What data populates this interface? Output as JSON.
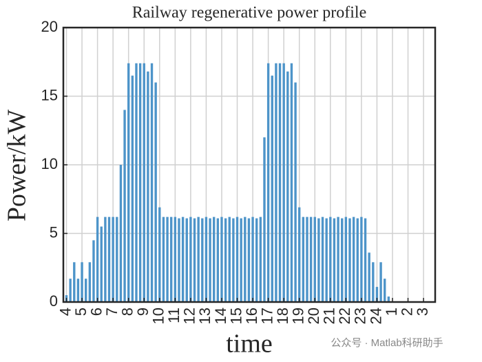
{
  "chart_data": {
    "type": "bar",
    "title": "Railway regenerative power profile",
    "xlabel": "time",
    "ylabel": "Power/kW",
    "color": "#4d94c9",
    "grid": true,
    "watermark": "公众号 · Matlab科研助手",
    "x": [
      4,
      4.25,
      4.5,
      4.75,
      5,
      5.25,
      5.5,
      5.75,
      6,
      6.25,
      6.5,
      6.75,
      7,
      7.25,
      7.5,
      7.75,
      8,
      8.25,
      8.5,
      8.75,
      9,
      9.25,
      9.5,
      9.75,
      10,
      10.25,
      10.5,
      10.75,
      11,
      11.25,
      11.5,
      11.75,
      12,
      12.25,
      12.5,
      12.75,
      13,
      13.25,
      13.5,
      13.75,
      14,
      14.25,
      14.5,
      14.75,
      15,
      15.25,
      15.5,
      15.75,
      16,
      16.25,
      16.5,
      16.75,
      17,
      17.25,
      17.5,
      17.75,
      18,
      18.25,
      18.5,
      18.75,
      19,
      19.25,
      19.5,
      19.75,
      20,
      20.25,
      20.5,
      20.75,
      21,
      21.25,
      21.5,
      21.75,
      22,
      22.25,
      22.5,
      22.75,
      23,
      23.25,
      23.5,
      23.75,
      24,
      24.25,
      24.5,
      24.75
    ],
    "values": [
      0.5,
      1.7,
      2.9,
      1.7,
      2.9,
      1.7,
      2.9,
      4.5,
      6.2,
      5.5,
      6.2,
      6.2,
      6.2,
      6.2,
      10,
      14,
      17.4,
      16.5,
      17.4,
      17.4,
      17.4,
      16.8,
      17.4,
      16,
      6.9,
      6.2,
      6.2,
      6.2,
      6.2,
      6.1,
      6.2,
      6.1,
      6.2,
      6.1,
      6.2,
      6.1,
      6.2,
      6.1,
      6.2,
      6.1,
      6.2,
      6.1,
      6.2,
      6.1,
      6.2,
      6.1,
      6.2,
      6.1,
      6.2,
      6.1,
      6.2,
      12,
      17.4,
      16.5,
      17.4,
      17.4,
      17.4,
      16.8,
      17.4,
      16,
      6.9,
      6.2,
      6.2,
      6.2,
      6.2,
      6.1,
      6.2,
      6.1,
      6.2,
      6.1,
      6.2,
      6.1,
      6.2,
      6.1,
      6.2,
      6.1,
      6.2,
      6.1,
      3.6,
      2.9,
      1.1,
      2.9,
      1.7,
      0.4
    ],
    "xlim": [
      3.8,
      27.75
    ],
    "xticks": [
      4,
      5,
      6,
      7,
      8,
      9,
      10,
      11,
      12,
      13,
      14,
      15,
      16,
      17,
      18,
      19,
      20,
      21,
      22,
      23,
      24,
      {
        "value": 25,
        "label": "1"
      },
      {
        "value": 26,
        "label": "2"
      },
      {
        "value": 27,
        "label": "3"
      }
    ],
    "ylim": [
      0,
      20
    ],
    "yticks": [
      0,
      5,
      10,
      15,
      20
    ]
  }
}
